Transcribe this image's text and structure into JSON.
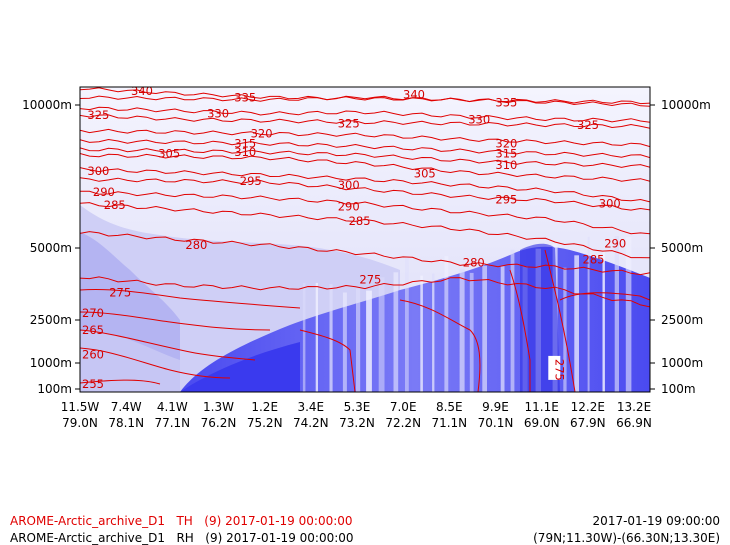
{
  "chart_data": {
    "type": "cross-section",
    "title": "",
    "height_axis": {
      "ticks": [
        "100m",
        "1000m",
        "2500m",
        "5000m",
        "10000m"
      ],
      "tick_values_m": [
        100,
        1000,
        2500,
        5000,
        10000
      ]
    },
    "x_axis": {
      "lon_ticks": [
        "11.5W",
        "7.4W",
        "4.1W",
        "1.3W",
        "1.2E",
        "3.4E",
        "5.3E",
        "7.0E",
        "8.5E",
        "9.9E",
        "11.1E",
        "12.2E",
        "13.2E"
      ],
      "lat_ticks": [
        "79.0N",
        "78.1N",
        "77.1N",
        "76.2N",
        "75.2N",
        "74.2N",
        "73.2N",
        "72.2N",
        "71.1N",
        "70.1N",
        "69.0N",
        "67.9N",
        "66.9N"
      ]
    },
    "series": [
      {
        "field": "TH",
        "style": "red contour lines"
      },
      {
        "field": "RH",
        "style": "blue shading"
      }
    ],
    "th_contour_labels": [
      {
        "value": 340,
        "x_frac": 0.09,
        "z_m": 10650
      },
      {
        "value": 340,
        "x_frac": 0.59,
        "z_m": 10400
      },
      {
        "value": 335,
        "x_frac": 0.28,
        "z_m": 10300
      },
      {
        "value": 335,
        "x_frac": 0.76,
        "z_m": 10100
      },
      {
        "value": 330,
        "x_frac": 0.23,
        "z_m": 9700
      },
      {
        "value": 330,
        "x_frac": 0.71,
        "z_m": 9500
      },
      {
        "value": 325,
        "x_frac": 0.01,
        "z_m": 9650
      },
      {
        "value": 325,
        "x_frac": 0.47,
        "z_m": 9350
      },
      {
        "value": 325,
        "x_frac": 0.91,
        "z_m": 9300
      },
      {
        "value": 320,
        "x_frac": 0.31,
        "z_m": 9000
      },
      {
        "value": 320,
        "x_frac": 0.76,
        "z_m": 8650
      },
      {
        "value": 315,
        "x_frac": 0.28,
        "z_m": 8650
      },
      {
        "value": 315,
        "x_frac": 0.76,
        "z_m": 8300
      },
      {
        "value": 310,
        "x_frac": 0.28,
        "z_m": 8350
      },
      {
        "value": 310,
        "x_frac": 0.76,
        "z_m": 7900
      },
      {
        "value": 305,
        "x_frac": 0.14,
        "z_m": 8300
      },
      {
        "value": 305,
        "x_frac": 0.61,
        "z_m": 7600
      },
      {
        "value": 300,
        "x_frac": 0.01,
        "z_m": 7700
      },
      {
        "value": 300,
        "x_frac": 0.47,
        "z_m": 7200
      },
      {
        "value": 300,
        "x_frac": 0.95,
        "z_m": 6550
      },
      {
        "value": 295,
        "x_frac": 0.29,
        "z_m": 7350
      },
      {
        "value": 295,
        "x_frac": 0.76,
        "z_m": 6700
      },
      {
        "value": 290,
        "x_frac": 0.02,
        "z_m": 6950
      },
      {
        "value": 290,
        "x_frac": 0.47,
        "z_m": 6450
      },
      {
        "value": 290,
        "x_frac": 0.96,
        "z_m": 5150
      },
      {
        "value": 285,
        "x_frac": 0.04,
        "z_m": 6500
      },
      {
        "value": 285,
        "x_frac": 0.49,
        "z_m": 5950
      },
      {
        "value": 285,
        "x_frac": 0.92,
        "z_m": 4600
      },
      {
        "value": 280,
        "x_frac": 0.19,
        "z_m": 5100
      },
      {
        "value": 280,
        "x_frac": 0.7,
        "z_m": 4500
      },
      {
        "value": 275,
        "x_frac": 0.05,
        "z_m": 3450
      },
      {
        "value": 275,
        "x_frac": 0.51,
        "z_m": 3900
      },
      {
        "value": 275,
        "x_frac": 0.87,
        "z_m": 900
      },
      {
        "value": 270,
        "x_frac": 0.0,
        "z_m": 2750
      },
      {
        "value": 265,
        "x_frac": 0.0,
        "z_m": 2150
      },
      {
        "value": 260,
        "x_frac": 0.0,
        "z_m": 1300
      },
      {
        "value": 255,
        "x_frac": 0.0,
        "z_m": 130
      }
    ],
    "legend": "bottom-left",
    "grid": false
  },
  "footer": {
    "line1_left": "AROME-Arctic_archive_D1   TH   (9) 2017-01-19 00:00:00",
    "line2_left": "AROME-Arctic_archive_D1   RH   (9) 2017-01-19 00:00:00",
    "line1_right": "2017-01-19 09:00:00",
    "line2_right": "(79N;11.30W)-(66.30N;13.30E)"
  },
  "colors": {
    "th_contour": "#e00000",
    "rh_light": "#eeeefc",
    "rh_mid": "#c0c0f4",
    "rh_dark": "#4444ee",
    "footer_th": "#e00000",
    "footer_rh": "#000000"
  }
}
